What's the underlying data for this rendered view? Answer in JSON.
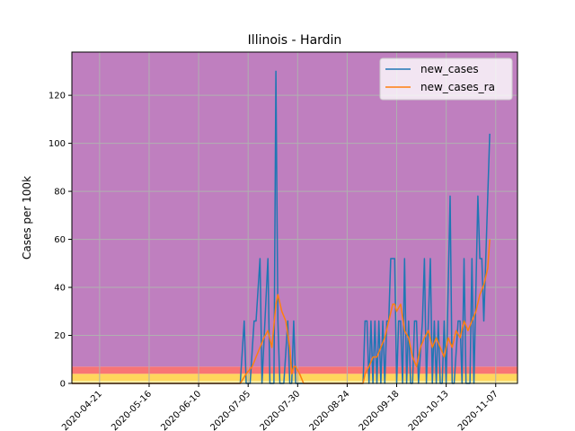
{
  "chart_data": {
    "type": "line",
    "title": "Illinois - Hardin",
    "xlabel": "",
    "ylabel": "Cases per 100k",
    "ylim": [
      0,
      138
    ],
    "xlim": [
      "2020-04-07",
      "2020-11-18"
    ],
    "grid": true,
    "legend_position": "top-right",
    "x_tick_labels": [
      "2020-04-21",
      "2020-05-16",
      "2020-06-10",
      "2020-07-05",
      "2020-07-30",
      "2020-08-24",
      "2020-09-18",
      "2020-10-13",
      "2020-11-07"
    ],
    "x_tick_dates": [
      "2020-04-21",
      "2020-05-16",
      "2020-06-10",
      "2020-07-05",
      "2020-07-30",
      "2020-08-24",
      "2020-09-18",
      "2020-10-13",
      "2020-11-07"
    ],
    "y_ticks": [
      0,
      20,
      40,
      60,
      80,
      100,
      120
    ],
    "background_bands": [
      {
        "from": 0,
        "to": 1,
        "color": "#fff2a8"
      },
      {
        "from": 1,
        "to": 4,
        "color": "#ffd65c"
      },
      {
        "from": 4,
        "to": 7,
        "color": "#f87575"
      },
      {
        "from": 7,
        "to": 138,
        "color": "#bf7fbf"
      }
    ],
    "colors": {
      "new_cases": "#1f77b4",
      "new_cases_ra": "#ff7f0e",
      "grid": "#b0b0b0"
    },
    "series": [
      {
        "name": "new_cases",
        "points": [
          [
            "2020-04-07",
            0
          ],
          [
            "2020-07-01",
            0
          ],
          [
            "2020-07-03",
            26
          ],
          [
            "2020-07-04",
            0
          ],
          [
            "2020-07-06",
            0
          ],
          [
            "2020-07-08",
            26
          ],
          [
            "2020-07-09",
            26
          ],
          [
            "2020-07-11",
            52
          ],
          [
            "2020-07-12",
            0
          ],
          [
            "2020-07-15",
            52
          ],
          [
            "2020-07-16",
            0
          ],
          [
            "2020-07-18",
            0
          ],
          [
            "2020-07-19",
            130
          ],
          [
            "2020-07-20",
            26
          ],
          [
            "2020-07-21",
            0
          ],
          [
            "2020-07-23",
            0
          ],
          [
            "2020-07-25",
            26
          ],
          [
            "2020-07-26",
            0
          ],
          [
            "2020-07-27",
            0
          ],
          [
            "2020-07-28",
            26
          ],
          [
            "2020-07-29",
            0
          ],
          [
            "2020-09-01",
            0
          ],
          [
            "2020-09-02",
            26
          ],
          [
            "2020-09-03",
            26
          ],
          [
            "2020-09-04",
            0
          ],
          [
            "2020-09-05",
            26
          ],
          [
            "2020-09-06",
            0
          ],
          [
            "2020-09-07",
            26
          ],
          [
            "2020-09-08",
            0
          ],
          [
            "2020-09-09",
            26
          ],
          [
            "2020-09-10",
            0
          ],
          [
            "2020-09-11",
            26
          ],
          [
            "2020-09-12",
            0
          ],
          [
            "2020-09-13",
            26
          ],
          [
            "2020-09-14",
            26
          ],
          [
            "2020-09-15",
            52
          ],
          [
            "2020-09-17",
            52
          ],
          [
            "2020-09-18",
            0
          ],
          [
            "2020-09-19",
            26
          ],
          [
            "2020-09-20",
            26
          ],
          [
            "2020-09-21",
            0
          ],
          [
            "2020-09-22",
            52
          ],
          [
            "2020-09-23",
            0
          ],
          [
            "2020-09-24",
            26
          ],
          [
            "2020-09-25",
            0
          ],
          [
            "2020-09-26",
            0
          ],
          [
            "2020-09-27",
            26
          ],
          [
            "2020-09-28",
            26
          ],
          [
            "2020-09-29",
            0
          ],
          [
            "2020-10-01",
            26
          ],
          [
            "2020-10-02",
            52
          ],
          [
            "2020-10-03",
            0
          ],
          [
            "2020-10-05",
            52
          ],
          [
            "2020-10-06",
            0
          ],
          [
            "2020-10-07",
            26
          ],
          [
            "2020-10-08",
            0
          ],
          [
            "2020-10-09",
            26
          ],
          [
            "2020-10-10",
            0
          ],
          [
            "2020-10-11",
            0
          ],
          [
            "2020-10-12",
            26
          ],
          [
            "2020-10-13",
            0
          ],
          [
            "2020-10-15",
            78
          ],
          [
            "2020-10-16",
            0
          ],
          [
            "2020-10-17",
            0
          ],
          [
            "2020-10-19",
            26
          ],
          [
            "2020-10-20",
            26
          ],
          [
            "2020-10-21",
            0
          ],
          [
            "2020-10-22",
            52
          ],
          [
            "2020-10-23",
            0
          ],
          [
            "2020-10-25",
            0
          ],
          [
            "2020-10-26",
            52
          ],
          [
            "2020-10-27",
            0
          ],
          [
            "2020-10-29",
            78
          ],
          [
            "2020-10-30",
            52
          ],
          [
            "2020-10-31",
            52
          ],
          [
            "2020-11-01",
            26
          ],
          [
            "2020-11-02",
            52
          ],
          [
            "2020-11-03",
            78
          ],
          [
            "2020-11-04",
            104
          ]
        ]
      },
      {
        "name": "new_cases_ra",
        "points": [
          [
            "2020-04-07",
            0
          ],
          [
            "2020-07-01",
            0
          ],
          [
            "2020-07-04",
            4
          ],
          [
            "2020-07-07",
            7
          ],
          [
            "2020-07-09",
            11
          ],
          [
            "2020-07-11",
            15
          ],
          [
            "2020-07-13",
            19
          ],
          [
            "2020-07-15",
            22
          ],
          [
            "2020-07-17",
            15
          ],
          [
            "2020-07-19",
            33
          ],
          [
            "2020-07-20",
            37
          ],
          [
            "2020-07-22",
            30
          ],
          [
            "2020-07-24",
            26
          ],
          [
            "2020-07-26",
            15
          ],
          [
            "2020-07-27",
            4
          ],
          [
            "2020-07-28",
            7
          ],
          [
            "2020-07-29",
            7
          ],
          [
            "2020-07-31",
            4
          ],
          [
            "2020-08-02",
            0
          ],
          [
            "2020-09-01",
            0
          ],
          [
            "2020-09-02",
            4
          ],
          [
            "2020-09-04",
            7
          ],
          [
            "2020-09-06",
            11
          ],
          [
            "2020-09-08",
            11
          ],
          [
            "2020-09-10",
            15
          ],
          [
            "2020-09-12",
            19
          ],
          [
            "2020-09-14",
            26
          ],
          [
            "2020-09-16",
            33
          ],
          [
            "2020-09-17",
            33
          ],
          [
            "2020-09-18",
            30
          ],
          [
            "2020-09-20",
            33
          ],
          [
            "2020-09-22",
            22
          ],
          [
            "2020-09-24",
            19
          ],
          [
            "2020-09-26",
            11
          ],
          [
            "2020-09-28",
            7
          ],
          [
            "2020-09-30",
            15
          ],
          [
            "2020-10-02",
            19
          ],
          [
            "2020-10-04",
            22
          ],
          [
            "2020-10-06",
            15
          ],
          [
            "2020-10-08",
            19
          ],
          [
            "2020-10-10",
            15
          ],
          [
            "2020-10-12",
            11
          ],
          [
            "2020-10-14",
            19
          ],
          [
            "2020-10-16",
            15
          ],
          [
            "2020-10-18",
            22
          ],
          [
            "2020-10-20",
            19
          ],
          [
            "2020-10-22",
            26
          ],
          [
            "2020-10-24",
            22
          ],
          [
            "2020-10-26",
            26
          ],
          [
            "2020-10-28",
            30
          ],
          [
            "2020-10-30",
            37
          ],
          [
            "2020-11-01",
            41
          ],
          [
            "2020-11-03",
            48
          ],
          [
            "2020-11-04",
            60
          ]
        ]
      }
    ]
  }
}
